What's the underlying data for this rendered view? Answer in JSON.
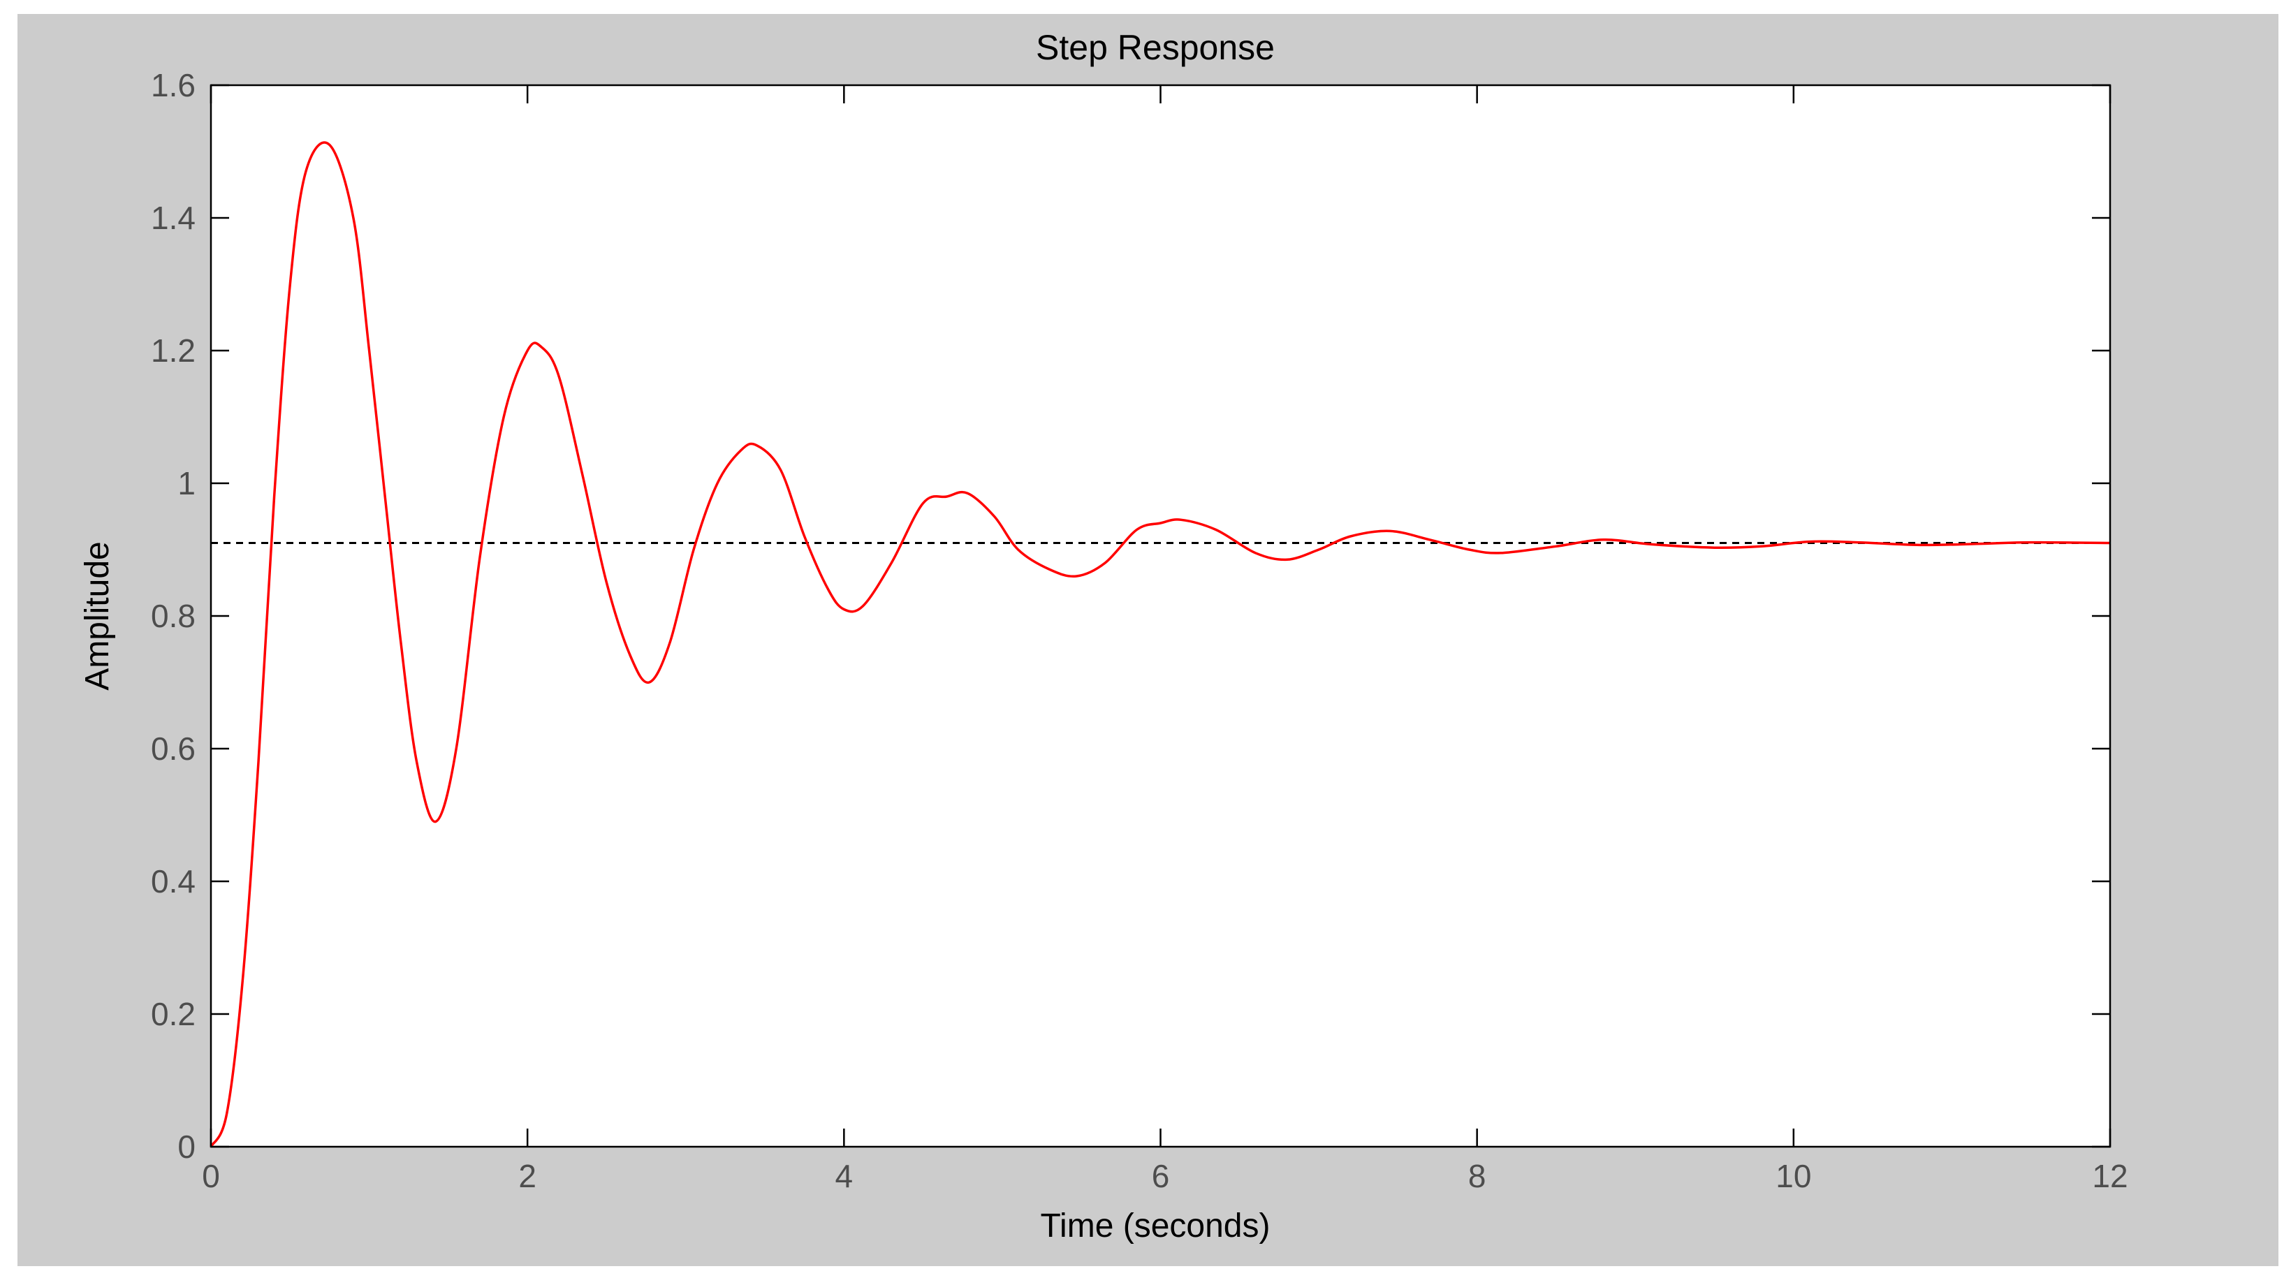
{
  "chart_data": {
    "type": "line",
    "title": "Step Response",
    "xlabel": "Time (seconds)",
    "ylabel": "Amplitude",
    "xlim": [
      0,
      12
    ],
    "ylim": [
      0,
      1.6
    ],
    "x_ticks": [
      0,
      2,
      4,
      6,
      8,
      10,
      12
    ],
    "x_tick_labels": [
      "0",
      "2",
      "4",
      "6",
      "8",
      "10",
      "12"
    ],
    "y_ticks": [
      0,
      0.2,
      0.4,
      0.6,
      0.8,
      1,
      1.2,
      1.4,
      1.6
    ],
    "y_tick_labels": [
      "0",
      "0.2",
      "0.4",
      "0.6",
      "0.8",
      "1",
      "1.2",
      "1.4",
      "1.6"
    ],
    "grid": false,
    "series": [
      {
        "color": "#ff0000",
        "style": "solid",
        "x": [
          0,
          0.1,
          0.2,
          0.3,
          0.4,
          0.5,
          0.6,
          0.75,
          0.9,
          1.0,
          1.1,
          1.2,
          1.3,
          1.42,
          1.55,
          1.7,
          1.85,
          2.0,
          2.09,
          2.2,
          2.35,
          2.5,
          2.65,
          2.77,
          2.9,
          3.05,
          3.2,
          3.35,
          3.45,
          3.6,
          3.75,
          3.9,
          4.0,
          4.12,
          4.3,
          4.5,
          4.65,
          4.78,
          4.95,
          5.1,
          5.3,
          5.47,
          5.65,
          5.85,
          6.0,
          6.13,
          6.35,
          6.6,
          6.8,
          7.0,
          7.2,
          7.45,
          7.7,
          7.95,
          8.15,
          8.5,
          8.8,
          9.1,
          9.5,
          9.8,
          10.1,
          10.4,
          10.8,
          11.2,
          11.5,
          12.0
        ],
        "y": [
          0,
          0.05,
          0.25,
          0.58,
          0.98,
          1.3,
          1.47,
          1.51,
          1.4,
          1.2,
          0.98,
          0.76,
          0.58,
          0.49,
          0.6,
          0.89,
          1.1,
          1.2,
          1.205,
          1.16,
          1.01,
          0.85,
          0.74,
          0.7,
          0.76,
          0.9,
          1.0,
          1.05,
          1.057,
          1.02,
          0.92,
          0.84,
          0.81,
          0.815,
          0.88,
          0.97,
          0.98,
          0.985,
          0.95,
          0.9,
          0.87,
          0.86,
          0.88,
          0.93,
          0.94,
          0.945,
          0.93,
          0.895,
          0.885,
          0.9,
          0.92,
          0.928,
          0.915,
          0.9,
          0.895,
          0.905,
          0.915,
          0.908,
          0.903,
          0.905,
          0.912,
          0.911,
          0.907,
          0.909,
          0.911,
          0.91
        ]
      },
      {
        "color": "#000000",
        "style": "dashed",
        "x": [
          0,
          12
        ],
        "y": [
          0.91,
          0.91
        ]
      }
    ]
  }
}
